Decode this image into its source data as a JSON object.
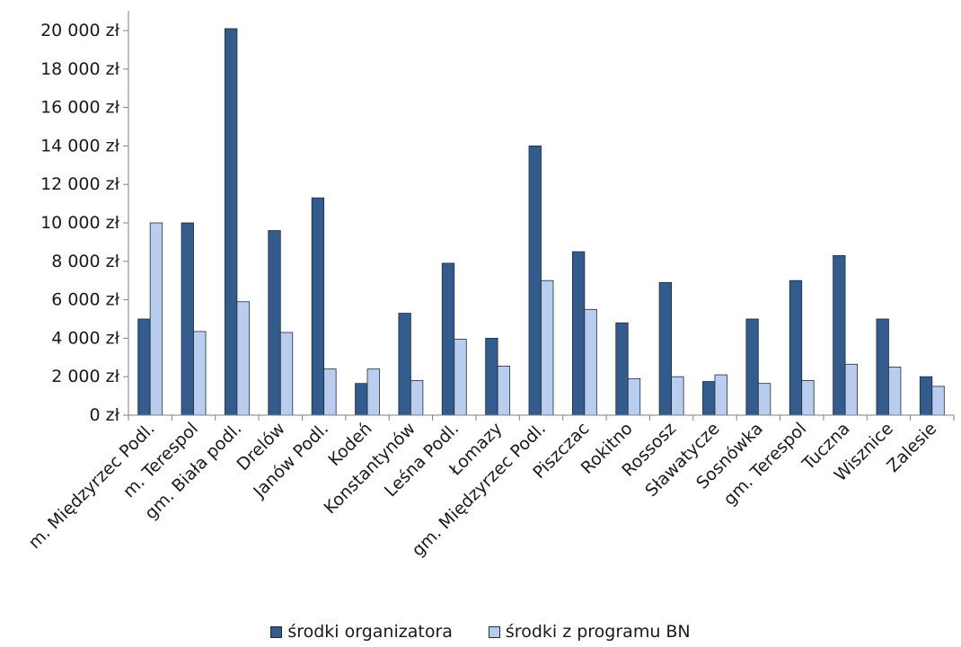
{
  "chart_data": {
    "type": "bar",
    "categories": [
      "m. Międzyrzec Podl.",
      "m. Terespol",
      "gm. Biała podl.",
      "Drelów",
      "Janów Podl.",
      "Kodeń",
      "Konstantynów",
      "Leśna Podl.",
      "Łomazy",
      "gm. Międzyrzec Podl.",
      "Piszczac",
      "Rokitno",
      "Rossosz",
      "Sławatycze",
      "Sosnówka",
      "gm. Terespol",
      "Tuczna",
      "Wisznice",
      "Zalesie"
    ],
    "series": [
      {
        "name": "środki organizatora",
        "color": "#335b8c",
        "values": [
          5000,
          10000,
          20100,
          9600,
          11300,
          1650,
          5300,
          7900,
          4000,
          14000,
          8500,
          4800,
          6900,
          1750,
          5000,
          7000,
          8300,
          5000,
          2000
        ]
      },
      {
        "name": "środki z programu BN",
        "color": "#b9cdef",
        "values": [
          10000,
          4350,
          5900,
          4300,
          2400,
          2400,
          1800,
          3950,
          2550,
          7000,
          5500,
          1900,
          2000,
          2100,
          1650,
          1800,
          2650,
          2500,
          1500
        ]
      }
    ],
    "y_ticks": [
      "0 zł",
      "2 000 zł",
      "4 000 zł",
      "6 000 zł",
      "8 000 zł",
      "10 000 zł",
      "12 000 zł",
      "14 000 zł",
      "16 000 zł",
      "18 000 zł",
      "20 000 zł"
    ],
    "ylim": [
      0,
      20000
    ],
    "grid": false,
    "legend_position": "bottom",
    "title": "",
    "xlabel": "",
    "ylabel": ""
  }
}
